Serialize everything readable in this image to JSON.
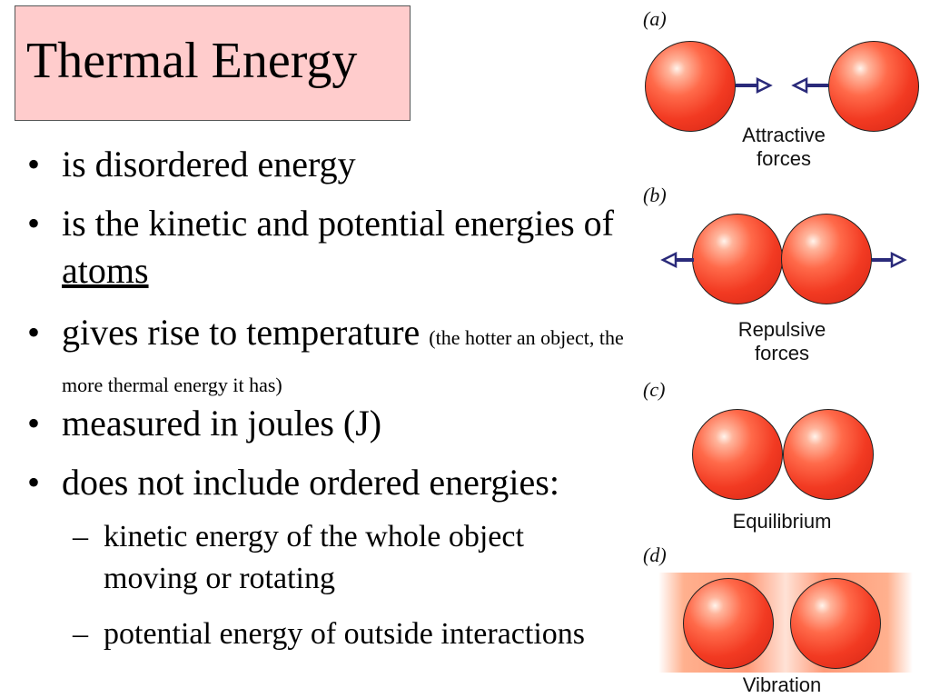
{
  "slide": {
    "title": "Thermal Energy",
    "bullets": [
      {
        "text": "is disordered energy"
      },
      {
        "text_before": "is the kinetic and potential energies of ",
        "text_underlined": "atoms"
      },
      {
        "text": "gives rise to temperature",
        "note": "(the hotter an object, the more thermal energy it has)"
      },
      {
        "text": "measured in joules (J)"
      },
      {
        "text": "does not include ordered energies:"
      }
    ],
    "sub_bullets": [
      {
        "text": "kinetic energy of the whole object moving or rotating"
      },
      {
        "text": "potential energy of outside interactions"
      }
    ],
    "bullet_symbol": "•",
    "dash_symbol": "–"
  },
  "diagram": {
    "panels": [
      {
        "label": "(a)",
        "caption_line1": "Attractive",
        "caption_line2": "forces"
      },
      {
        "label": "(b)",
        "caption_line1": "Repulsive",
        "caption_line2": "forces"
      },
      {
        "label": "(c)",
        "caption_line1": "Equilibrium"
      },
      {
        "label": "(d)",
        "caption_line1": "Vibration"
      }
    ],
    "colors": {
      "atom": "#f23a22",
      "arrow": "#2a2a7a",
      "title_background": "#ffcccc"
    }
  }
}
